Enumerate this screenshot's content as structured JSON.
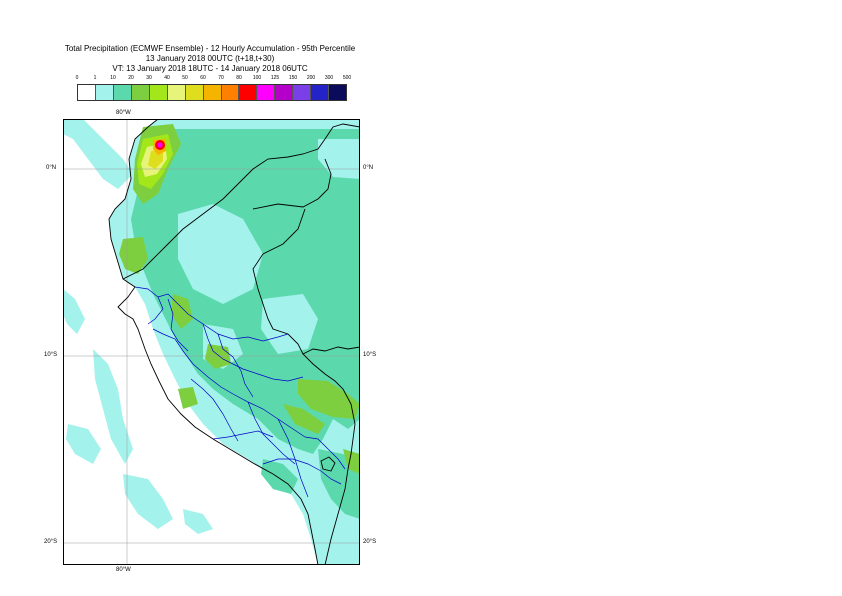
{
  "title": {
    "line1": "Total Precipitation (ECMWF Ensemble) - 12 Hourly Accumulation - 95th Percentile",
    "line2": "13 January 2018 00UTC (t+18,t+30)",
    "line3": "VT: 13 January 2018 18UTC - 14 January 2018 06UTC"
  },
  "legend": {
    "labels": [
      "0",
      "1",
      "10",
      "20",
      "30",
      "40",
      "50",
      "60",
      "70",
      "80",
      "100",
      "125",
      "150",
      "200",
      "300",
      "500"
    ],
    "colors": [
      "#ffffff",
      "#a4f2ec",
      "#5cd9ac",
      "#7dcf3f",
      "#a3e61a",
      "#e6f57a",
      "#dede1f",
      "#f5b400",
      "#ff8000",
      "#ff0000",
      "#ff00ff",
      "#b400c8",
      "#7b3fe8",
      "#2323c8",
      "#0b0b5c"
    ]
  },
  "axes": {
    "top_lon": "80°W",
    "bottom_lon": "80°W",
    "lat_left": [
      "0°N",
      "10°S",
      "20°S"
    ],
    "lat_right": [
      "0°N",
      "10°S",
      "20°S"
    ]
  },
  "colors": {
    "ocean": "#ffffff",
    "light": "#a4f2ec",
    "medium": "#5cd9ac",
    "green": "#7dcf3f",
    "lime": "#a3e61a",
    "yellow": "#e6f57a",
    "gold": "#dede1f",
    "orange": "#f5b400",
    "red": "#ff0000",
    "magenta": "#ff00ff",
    "coast": "#000000",
    "admin": "#0000c8",
    "grid": "#9a9a9a"
  }
}
